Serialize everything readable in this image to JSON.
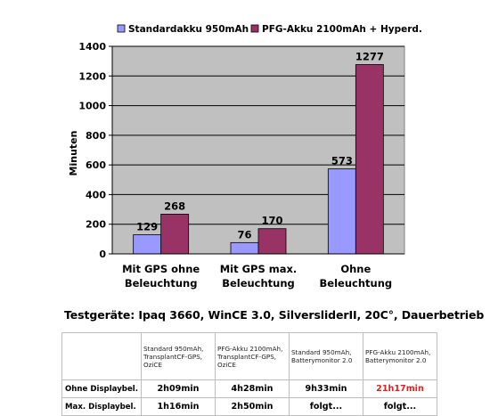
{
  "chart_data": {
    "type": "bar",
    "title": "",
    "xlabel": "",
    "ylabel": "Minuten",
    "ylim": [
      0,
      1400
    ],
    "yticks": [
      0,
      200,
      400,
      600,
      800,
      1000,
      1200,
      1400
    ],
    "grid": true,
    "legend_position": "top",
    "categories": [
      [
        "Mit GPS ohne",
        "Beleuchtung"
      ],
      [
        "Mit GPS max.",
        "Beleuchtung"
      ],
      [
        "Ohne",
        "Beleuchtung"
      ]
    ],
    "series": [
      {
        "name": "Standardakku 950mAh",
        "color": "#9999ff",
        "values": [
          129,
          76,
          573
        ]
      },
      {
        "name": "PFG-Akku 2100mAh + Hyperd.",
        "color": "#993366",
        "values": [
          268,
          170,
          1277
        ]
      }
    ]
  },
  "caption": "Testgeräte: Ipaq 3660, WinCE 3.0, SilversliderII, 20C°, Dauerbetrieb",
  "table": {
    "columns": [
      [
        "Standard 950mAh,",
        "TransplantCF-GPS,",
        "OziCE"
      ],
      [
        "PFG-Akku 2100mAh,",
        "TransplantCF-GPS,",
        "OziCE"
      ],
      [
        "Standard 950mAh,",
        "Batterymonitor 2.0"
      ],
      [
        "PFG-Akku 2100mAh,",
        "Batterymonitor 2.0"
      ]
    ],
    "rows": [
      {
        "label": "Ohne Displaybel.",
        "cells": [
          "2h09min",
          "4h28min",
          "9h33min",
          "21h17min"
        ]
      },
      {
        "label": "Max. Displaybel.",
        "cells": [
          "1h16min",
          "2h50min",
          "folgt...",
          "folgt..."
        ]
      }
    ],
    "highlight_color": "#e02020"
  }
}
